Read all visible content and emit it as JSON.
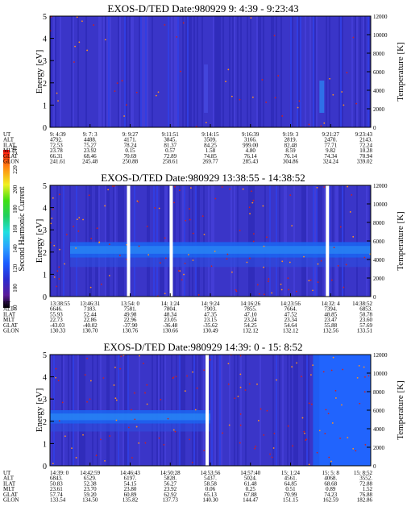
{
  "colorbar": {
    "label": "Second Harmonic Current",
    "ticks": [
      "80",
      "100",
      "120",
      "140",
      "160",
      "180",
      "200",
      "220",
      "240"
    ],
    "min": 80,
    "max": 240
  },
  "row_labels": [
    "UT",
    "ALT",
    "ILAT",
    "MLT",
    "GLAT",
    "GLON"
  ],
  "chart_data": [
    {
      "type": "heatmap",
      "title": "EXOS-D/TED   Date:980929   9: 4:39 - 9:23:43",
      "ylabel": "Energy [eV]",
      "y2label": "Temperature [K]",
      "ylim": [
        0,
        5
      ],
      "y2lim": [
        0,
        12000
      ],
      "yticks": [
        "0",
        "1",
        "2",
        "3",
        "4",
        "5"
      ],
      "y2ticks": [
        "0",
        "2000",
        "4000",
        "6000",
        "8000",
        "10000",
        "12000"
      ],
      "gaps": [],
      "band": null,
      "table": [
        [
          "9: 4:39",
          "9: 7: 3",
          "9: 9:27",
          "9:11:51",
          "9:14:15",
          "9:16:39",
          "9:19: 3",
          "9:21:27",
          "9:23:43"
        ],
        [
          "4792.",
          "4488.",
          "4171.",
          "3845.",
          "3509.",
          "3166.",
          "2819.",
          "2470.",
          "2143."
        ],
        [
          "72.53",
          "75.27",
          "78.24",
          "81.37",
          "84.25",
          "999.00",
          "82.48",
          "77.71",
          "72.24"
        ],
        [
          "23.78",
          "23.92",
          "0.15",
          "0.57",
          "1.58",
          "4.80",
          "8.59",
          "9.82",
          "10.28"
        ],
        [
          "66.31",
          "68.46",
          "70.69",
          "72.89",
          "74.85",
          "76.14",
          "76.14",
          "74.34",
          "70.94"
        ],
        [
          "241.61",
          "245.48",
          "250.88",
          "258.61",
          "269.77",
          "285.43",
          "304.86",
          "324.24",
          "339.02"
        ]
      ]
    },
    {
      "type": "heatmap",
      "title": "EXOS-D/TED   Date:980929   13:38:55 - 14:38:52",
      "ylabel": "Energy [eV]",
      "y2label": "Temperature [K]",
      "ylim": [
        0,
        5
      ],
      "y2lim": [
        0,
        12000
      ],
      "yticks": [
        "0",
        "1",
        "2",
        "3",
        "4",
        "5"
      ],
      "y2ticks": [
        "0",
        "2000",
        "4000",
        "6000",
        "8000",
        "10000",
        "12000"
      ],
      "gaps": [
        0.245,
        0.378,
        0.865
      ],
      "band": {
        "center_ev": 2.1,
        "width_ev": 0.7
      },
      "table": [
        [
          "13:38:55",
          "13:46:31",
          "13:54: 0",
          "14: 1:24",
          "14: 9:24",
          "14:16:26",
          "14:23:56",
          "14:32: 4",
          "14:38:52"
        ],
        [
          "6646.",
          "7183.",
          "7581.",
          "7804.",
          "7903.",
          "7855.",
          "7664.",
          "7394.",
          "6853."
        ],
        [
          "55.93",
          "52.44",
          "49.98",
          "48.34",
          "47.35",
          "47.10",
          "47.52",
          "48.85",
          "50.78"
        ],
        [
          "22.73",
          "22.86",
          "22.96",
          "23.05",
          "23.15",
          "23.24",
          "23.34",
          "23.47",
          "23.60"
        ],
        [
          "-43.03",
          "-40.02",
          "-37.90",
          "-36.48",
          "-35.62",
          "54.25",
          "54.64",
          "55.88",
          "57.69"
        ],
        [
          "130.33",
          "130.70",
          "130.76",
          "130.66",
          "130.49",
          "132.12",
          "132.12",
          "132.56",
          "133.51"
        ]
      ]
    },
    {
      "type": "heatmap",
      "title": "EXOS-D/TED   Date:980929   14:39: 0 - 15: 8:52",
      "ylabel": "Energy [eV]",
      "y2label": "Temperature [K]",
      "ylim": [
        0,
        5
      ],
      "y2lim": [
        0,
        12000
      ],
      "yticks": [
        "0",
        "1",
        "2",
        "3",
        "4",
        "5"
      ],
      "y2ticks": [
        "0",
        "2000",
        "4000",
        "6000",
        "8000",
        "10000",
        "12000"
      ],
      "gaps": [
        0.49
      ],
      "band": {
        "center_ev": 2.2,
        "width_ev": 0.6
      },
      "table": [
        [
          "14:39: 0",
          "14:42:59",
          "14:46:43",
          "14:50:28",
          "14:53:56",
          "14:57:40",
          "15: 1:24",
          "15: 5: 8",
          "15: 8:52"
        ],
        [
          "6843.",
          "6529.",
          "6197.",
          "5828.",
          "5437.",
          "5024.",
          "4561.",
          "4068.",
          "3552."
        ],
        [
          "50.83",
          "52.38",
          "54.15",
          "56.27",
          "58.58",
          "61.48",
          "64.85",
          "68.68",
          "72.88"
        ],
        [
          "23.61",
          "23.70",
          "23.80",
          "23.92",
          "0.06",
          "0.25",
          "0.51",
          "0.89",
          "1.52"
        ],
        [
          "57.74",
          "59.20",
          "60.89",
          "62.92",
          "65.13",
          "67.88",
          "70.99",
          "74.23",
          "76.88"
        ],
        [
          "133.54",
          "134.50",
          "135.82",
          "137.73",
          "140.30",
          "144.47",
          "151.15",
          "162.59",
          "182.86"
        ]
      ]
    }
  ]
}
